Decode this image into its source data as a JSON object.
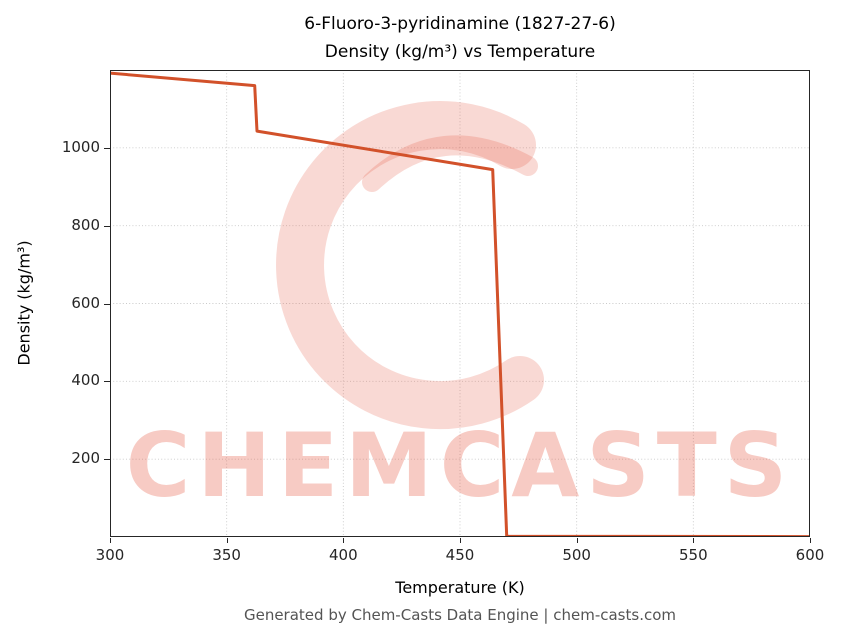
{
  "header": {
    "line1": "6-Fluoro-3-pyridinamine (1827-27-6)",
    "line2": "Density (kg/m³) vs Temperature"
  },
  "footer": "Generated by Chem-Casts Data Engine | chem-casts.com",
  "watermark": "CHEMCASTS",
  "colors": {
    "line": "#d2512a",
    "watermark": "rgba(228,83,61,0.30)",
    "watermark_swirl": "rgba(228,83,61,0.22)",
    "grid": "#c9c9c9",
    "spine": "#262626"
  },
  "chart_data": {
    "type": "line",
    "title": "6-Fluoro-3-pyridinamine (1827-27-6) — Density (kg/m³) vs Temperature",
    "xlabel": "Temperature (K)",
    "ylabel": "Density (kg/m³)",
    "xlim": [
      300,
      600
    ],
    "ylim": [
      0,
      1200
    ],
    "x_ticks": [
      300,
      350,
      400,
      450,
      500,
      550,
      600
    ],
    "y_ticks": [
      200,
      400,
      600,
      800,
      1000
    ],
    "grid": true,
    "legend": "none",
    "series": [
      {
        "name": "Density",
        "points": [
          [
            300,
            1192
          ],
          [
            362,
            1160
          ],
          [
            363,
            1043
          ],
          [
            464,
            944
          ],
          [
            470,
            2
          ],
          [
            600,
            1
          ]
        ]
      }
    ]
  }
}
